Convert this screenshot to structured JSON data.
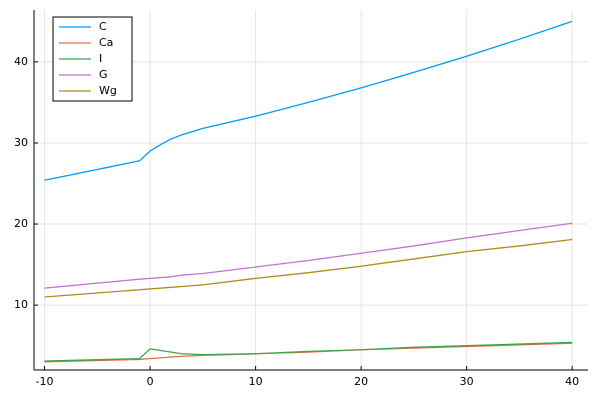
{
  "chart_data": {
    "type": "line",
    "x": [
      -10,
      -1,
      0,
      1,
      2,
      3,
      5,
      10,
      15,
      20,
      25,
      30,
      35,
      40
    ],
    "series": [
      {
        "name": "C",
        "color": "#009afa",
        "values": [
          25.4,
          27.8,
          29.0,
          29.8,
          30.5,
          31.0,
          31.8,
          33.3,
          35.0,
          36.8,
          38.7,
          40.7,
          42.8,
          45.0
        ]
      },
      {
        "name": "Ca",
        "color": "#e36f47",
        "values": [
          3.0,
          3.3,
          3.4,
          3.5,
          3.6,
          3.7,
          3.8,
          4.0,
          4.2,
          4.5,
          4.7,
          4.9,
          5.1,
          5.3
        ]
      },
      {
        "name": "I",
        "color": "#3ea44e",
        "values": [
          3.1,
          3.4,
          4.6,
          4.4,
          4.2,
          4.0,
          3.9,
          4.0,
          4.3,
          4.5,
          4.8,
          5.0,
          5.2,
          5.4
        ]
      },
      {
        "name": "G",
        "color": "#c371d2",
        "values": [
          12.1,
          13.2,
          13.3,
          13.4,
          13.5,
          13.7,
          13.9,
          14.7,
          15.5,
          16.4,
          17.3,
          18.3,
          19.2,
          20.1
        ]
      },
      {
        "name": "Wg",
        "color": "#ac8d18",
        "values": [
          11.0,
          11.9,
          12.0,
          12.1,
          12.2,
          12.3,
          12.5,
          13.3,
          14.0,
          14.8,
          15.7,
          16.6,
          17.3,
          18.1
        ]
      }
    ],
    "xlim": [
      -11,
      41.5
    ],
    "ylim": [
      2,
      46.4
    ],
    "xticks": [
      -10,
      0,
      10,
      20,
      30,
      40
    ],
    "yticks": [
      10,
      20,
      30,
      40
    ],
    "grid": true,
    "legend": "top-left"
  }
}
